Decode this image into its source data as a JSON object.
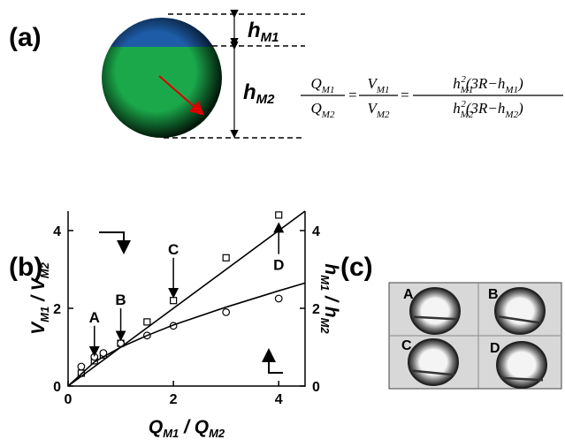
{
  "panels": {
    "a": "(a)",
    "b": "(b)",
    "c": "(c)"
  },
  "diagram": {
    "h1": [
      {
        "text": "h",
        "sub": "M1"
      }
    ],
    "h2": [
      {
        "text": "h",
        "sub": "M2"
      }
    ]
  },
  "equation": {
    "f1": {
      "num": [
        {
          "text": "Q",
          "sub": "M1"
        }
      ],
      "den": [
        {
          "text": "Q",
          "sub": "M2"
        }
      ]
    },
    "f2": {
      "num": [
        {
          "text": "V",
          "sub": "M1"
        }
      ],
      "den": [
        {
          "text": "V",
          "sub": "M2"
        }
      ]
    },
    "f3": {
      "num": [
        {
          "text": "h",
          "sub": "M1",
          "sup": "2"
        },
        {
          "text": "(3R−h",
          "sub": "M1"
        },
        {
          "text": ")"
        }
      ],
      "den": [
        {
          "text": "h",
          "sub": "M2",
          "sup": "2"
        },
        {
          "text": "(3R−h",
          "sub": "M2"
        },
        {
          "text": ")"
        }
      ]
    },
    "equals": "="
  },
  "chart_data": {
    "type": "scatter",
    "xlabel": [
      {
        "text": "Q",
        "sub": "M1"
      },
      {
        "text": " / Q",
        "sub": "M2"
      }
    ],
    "ylabel": [
      {
        "text": "V",
        "sub": "M1"
      },
      {
        "text": " / V",
        "sub": "M2"
      }
    ],
    "y2label": [
      {
        "text": "h",
        "sub": "M1"
      },
      {
        "text": " / h",
        "sub": "M2"
      }
    ],
    "xlim": [
      0,
      4.5
    ],
    "ylim": [
      0,
      4.5
    ],
    "y2lim": [
      0,
      4.5
    ],
    "xticks": [
      0,
      2,
      4
    ],
    "yticks": [
      0,
      2,
      4
    ],
    "y2ticks": [
      0,
      2,
      4
    ],
    "series": [
      {
        "marker": "square",
        "color": "#000",
        "x": [
          0.25,
          0.5,
          0.67,
          1,
          1.5,
          2,
          3,
          4
        ],
        "values": [
          0.33,
          0.65,
          0.8,
          1.1,
          1.65,
          2.2,
          3.3,
          4.4
        ]
      },
      {
        "marker": "circle",
        "color": "#000",
        "axis": "y2",
        "x": [
          0.25,
          0.5,
          0.67,
          1,
          1.5,
          2,
          3,
          4
        ],
        "values": [
          0.5,
          0.75,
          0.85,
          1.1,
          1.3,
          1.55,
          1.9,
          2.25
        ]
      },
      {
        "marker": "line",
        "color": "#000",
        "x": [
          0,
          4.5
        ],
        "values": [
          0,
          4.5
        ]
      },
      {
        "marker": "line",
        "color": "#000",
        "axis": "y2",
        "x": [
          0,
          0.5,
          1,
          1.5,
          2,
          3,
          4,
          4.5
        ],
        "values": [
          0,
          0.62,
          1.0,
          1.3,
          1.57,
          2.03,
          2.45,
          2.65
        ]
      }
    ],
    "annotations": [
      "A",
      "B",
      "C",
      "D"
    ]
  },
  "images": [
    "A",
    "B",
    "C",
    "D"
  ]
}
